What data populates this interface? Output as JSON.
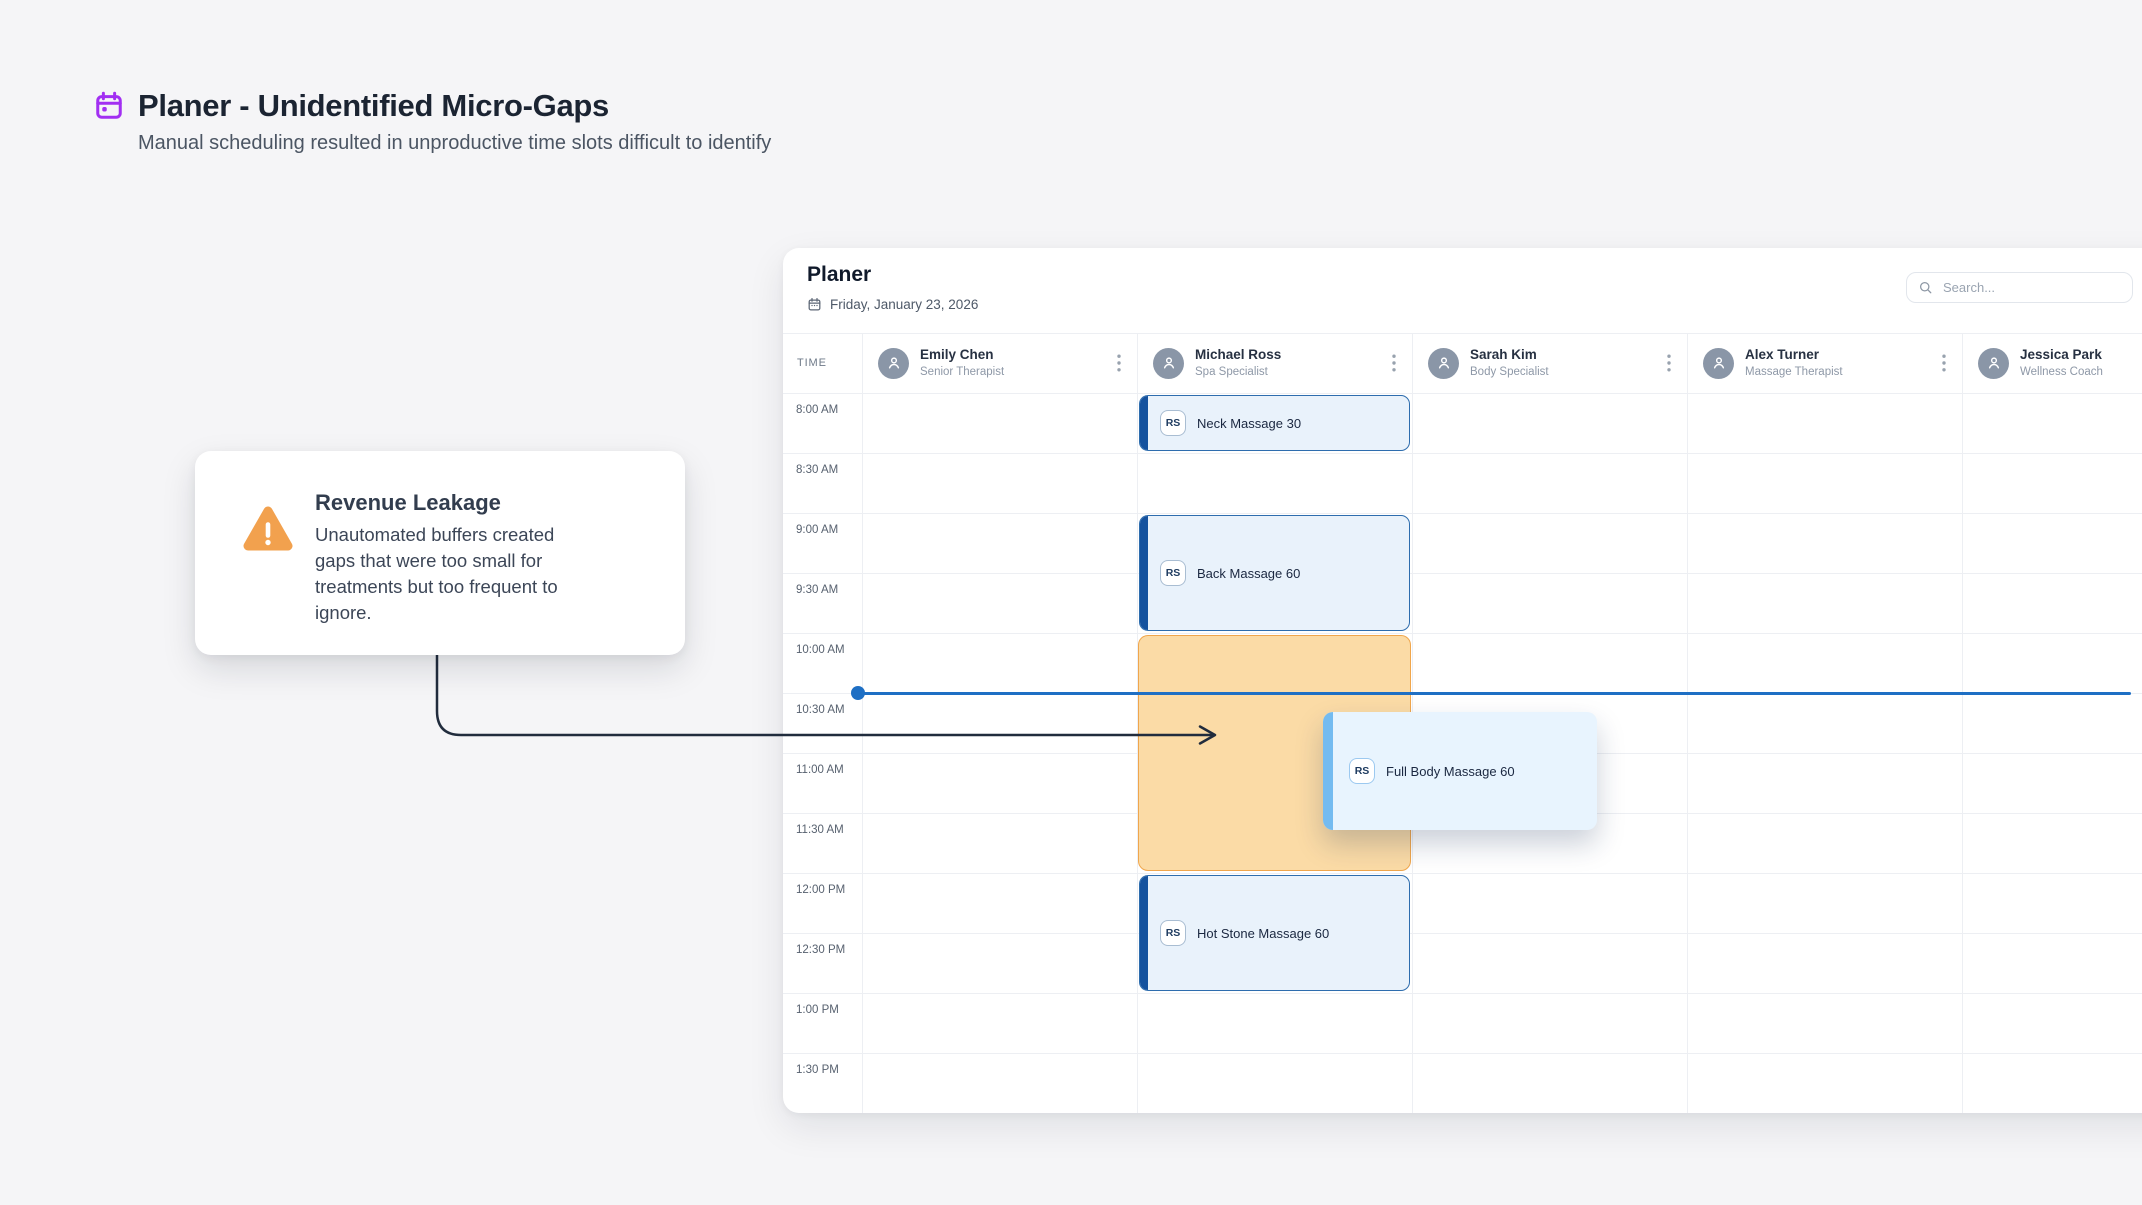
{
  "page": {
    "title": "Planer - Unidentified Micro-Gaps",
    "subtitle": "Manual scheduling resulted in unproductive time slots difficult to identify"
  },
  "callout": {
    "title": "Revenue Leakage",
    "body": "Unautomated buffers created gaps that were too small for treatments but too frequent to ignore.",
    "icon": "warning-triangle-icon"
  },
  "scheduler": {
    "title": "Planer",
    "date": "Friday, January 23, 2026",
    "search_placeholder": "Search...",
    "time_column_header": "TIME",
    "times": [
      "8:00 AM",
      "8:30 AM",
      "9:00 AM",
      "9:30 AM",
      "10:00 AM",
      "10:30 AM",
      "11:00 AM",
      "11:30 AM",
      "12:00 PM",
      "12:30 PM",
      "1:00 PM",
      "1:30 PM"
    ],
    "therapists": [
      {
        "name": "Emily Chen",
        "role": "Senior Therapist"
      },
      {
        "name": "Michael Ross",
        "role": "Spa Specialist"
      },
      {
        "name": "Sarah Kim",
        "role": "Body Specialist"
      },
      {
        "name": "Alex Turner",
        "role": "Massage Therapist"
      },
      {
        "name": "Jessica Park",
        "role": "Wellness Coach"
      }
    ],
    "appointments": [
      {
        "therapist": "Michael Ross",
        "label": "Neck Massage 30",
        "badge": "RS",
        "row": 0,
        "span": 1,
        "kind": "booked"
      },
      {
        "therapist": "Michael Ross",
        "label": "Back Massage 60",
        "badge": "RS",
        "row": 2,
        "span": 2,
        "kind": "booked"
      },
      {
        "therapist": "Michael Ross",
        "label": "",
        "badge": "",
        "row": 4,
        "span": 4,
        "kind": "gap"
      },
      {
        "therapist": "Michael Ross",
        "label": "Hot Stone Massage 60",
        "badge": "RS",
        "row": 8,
        "span": 2,
        "kind": "booked"
      }
    ],
    "floating_appointment": {
      "label": "Full Body Massage 60",
      "badge": "RS"
    },
    "indicator": {
      "time": "10:30 AM"
    },
    "colors": {
      "booked_fill": "#E9F2FB",
      "booked_bar": "#15529E",
      "booked_border": "#2E6DAE",
      "gap_fill": "#FBDBA6",
      "gap_border": "#F0A64C",
      "indicator": "#1E6FC4",
      "floating_fill": "#E8F4FE",
      "floating_bar": "#74BBF0",
      "header_icon": "#A22FF2",
      "warning": "#F2A14E"
    }
  }
}
